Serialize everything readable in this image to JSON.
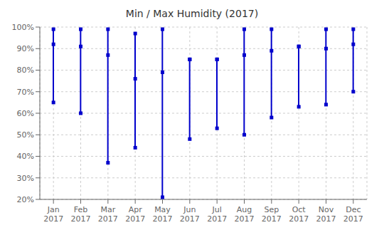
{
  "chart_data": {
    "type": "range",
    "title": "Min / Max Humidity (2017)",
    "categories": [
      "Jan\n2017",
      "Feb\n2017",
      "Mar\n2017",
      "Apr\n2017",
      "May\n2017",
      "Jun\n2017",
      "Jul\n2017",
      "Aug\n2017",
      "Sep\n2017",
      "Oct\n2017",
      "Nov\n2017",
      "Dec\n2017"
    ],
    "min_values": [
      65,
      60,
      37,
      44,
      21,
      48,
      53,
      50,
      58,
      63,
      64,
      70
    ],
    "max_values": [
      99,
      99,
      99,
      97,
      99,
      85,
      85,
      99,
      99,
      91,
      99,
      99
    ],
    "avg_values": [
      92,
      91,
      87,
      76,
      79,
      85,
      85,
      87,
      89,
      91,
      90,
      92
    ],
    "color": "#0000CC",
    "marker": "square",
    "ylim": [
      20,
      100
    ],
    "yticks": [
      {
        "value": 20,
        "label": "20%"
      },
      {
        "value": 30,
        "label": "30%"
      },
      {
        "value": 40,
        "label": "40%"
      },
      {
        "value": 50,
        "label": "50%"
      },
      {
        "value": 60,
        "label": "60%"
      },
      {
        "value": 70,
        "label": "70%"
      },
      {
        "value": 80,
        "label": "80%"
      },
      {
        "value": 90,
        "label": "90%"
      },
      {
        "value": 100,
        "label": "100%"
      }
    ],
    "grid": true
  }
}
